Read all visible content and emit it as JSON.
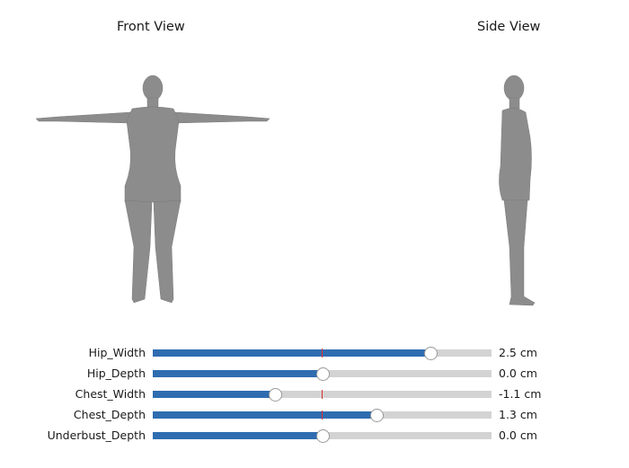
{
  "views": {
    "front_title": "Front View",
    "side_title": "Side View"
  },
  "sliders": [
    {
      "label": "Hip_Width",
      "value_text": "2.5 cm",
      "position": 0.82
    },
    {
      "label": "Hip_Depth",
      "value_text": "0.0 cm",
      "position": 0.5
    },
    {
      "label": "Chest_Width",
      "value_text": "-1.1 cm",
      "position": 0.36
    },
    {
      "label": "Chest_Depth",
      "value_text": "1.3 cm",
      "position": 0.66
    },
    {
      "label": "Underbust_Depth",
      "value_text": "0.0 cm",
      "position": 0.5
    }
  ],
  "colors": {
    "slider_fill": "#2f6db0",
    "slider_track": "#d3d3d3",
    "initial_marker": "#e03030",
    "mesh": "#8c8c8c"
  }
}
